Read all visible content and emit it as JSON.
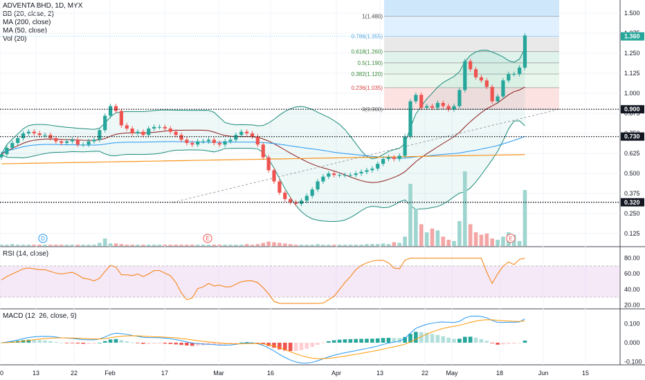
{
  "legend": {
    "symbol": "ADVENTA BHD, 1D, MYX",
    "indicators": [
      "BB (20, close, 2)",
      "MA (200, close)",
      "MA (50, close)",
      "Vol (20)"
    ]
  },
  "rsi_title": "RSI (14, close)",
  "macd_title": "MACD (12, 26, close, 9)",
  "colors": {
    "up": "#26a69a",
    "down": "#ef5350",
    "ma200": "#f7931a",
    "ma50": "#2196f3",
    "bb": "#1b8a7a",
    "rsi": "#f57c00",
    "macd": "#2196f3",
    "signal": "#ff9800"
  },
  "chart_data": {
    "type": "candlestick",
    "price_axis": {
      "ticks": [
        "1.500",
        "1.375",
        "1.250",
        "1.125",
        "1.000",
        "0.875",
        "0.750",
        "0.625",
        "0.500",
        "0.375",
        "0.250",
        "0.125"
      ],
      "values": [
        1.5,
        1.375,
        1.25,
        1.125,
        1.0,
        0.875,
        0.75,
        0.625,
        0.5,
        0.375,
        0.25,
        0.125
      ]
    },
    "x_axis": {
      "labels": [
        "20",
        "13",
        "22",
        "Feb",
        "17",
        "Mar",
        "16",
        "Apr",
        "13",
        "22",
        "May",
        "18",
        "Jun",
        "15"
      ]
    },
    "current_price": "1.360",
    "levels": [
      {
        "value": 0.9,
        "label": "0.900"
      },
      {
        "value": 0.73,
        "label": "0.730"
      },
      {
        "value": 0.32,
        "label": "0.320"
      }
    ],
    "fibonacci": [
      {
        "ratio": "1(1.480)",
        "value": 1.48
      },
      {
        "ratio": "0.786(1.355)",
        "value": 1.355
      },
      {
        "ratio": "0.618(1.260)",
        "value": 1.26
      },
      {
        "ratio": "0.5(1.190)",
        "value": 1.19
      },
      {
        "ratio": "0.382(1.120)",
        "value": 1.12
      },
      {
        "ratio": "0.236(1.035)",
        "value": 1.035
      },
      {
        "ratio": "0(0.900)",
        "value": 0.9
      }
    ],
    "event_markers": [
      "D",
      "E",
      "E"
    ],
    "closes": [
      0.62,
      0.66,
      0.69,
      0.72,
      0.75,
      0.76,
      0.75,
      0.74,
      0.74,
      0.72,
      0.7,
      0.69,
      0.7,
      0.71,
      0.68,
      0.68,
      0.7,
      0.71,
      0.77,
      0.86,
      0.92,
      0.89,
      0.8,
      0.78,
      0.75,
      0.76,
      0.74,
      0.78,
      0.79,
      0.79,
      0.78,
      0.76,
      0.74,
      0.71,
      0.69,
      0.68,
      0.7,
      0.7,
      0.71,
      0.69,
      0.68,
      0.7,
      0.71,
      0.74,
      0.76,
      0.75,
      0.73,
      0.68,
      0.6,
      0.52,
      0.45,
      0.38,
      0.34,
      0.32,
      0.31,
      0.33,
      0.36,
      0.4,
      0.45,
      0.48,
      0.5,
      0.49,
      0.49,
      0.49,
      0.49,
      0.5,
      0.51,
      0.52,
      0.53,
      0.56,
      0.59,
      0.6,
      0.59,
      0.61,
      0.73,
      0.95,
      0.99,
      0.91,
      0.92,
      0.91,
      0.94,
      0.92,
      0.9,
      0.92,
      1.02,
      1.2,
      1.15,
      1.1,
      1.08,
      1.04,
      0.95,
      0.98,
      1.08,
      1.12,
      1.12,
      1.16,
      1.36
    ],
    "volume": [
      2,
      2,
      3,
      2,
      2,
      2,
      2,
      2,
      2,
      2,
      2,
      2,
      2,
      2,
      2,
      2,
      2,
      2,
      5,
      12,
      4,
      4,
      3,
      2,
      2,
      2,
      2,
      2,
      2,
      2,
      2,
      2,
      2,
      2,
      2,
      2,
      2,
      2,
      2,
      2,
      2,
      2,
      2,
      2,
      2,
      3,
      2,
      3,
      5,
      7,
      6,
      5,
      4,
      3,
      2,
      2,
      2,
      2,
      3,
      2,
      2,
      2,
      2,
      2,
      2,
      2,
      2,
      3,
      3,
      3,
      4,
      3,
      6,
      5,
      15,
      100,
      60,
      35,
      22,
      28,
      25,
      15,
      10,
      8,
      40,
      120,
      35,
      22,
      18,
      20,
      12,
      10,
      15,
      22,
      18,
      8,
      90
    ],
    "rsi": {
      "ticks": [
        "80.00",
        "60.00",
        "40.00",
        "20.00"
      ],
      "upper": 70,
      "lower": 30
    },
    "macd": {
      "ticks": [
        "0.100",
        "0.000",
        "-0.100"
      ]
    }
  }
}
